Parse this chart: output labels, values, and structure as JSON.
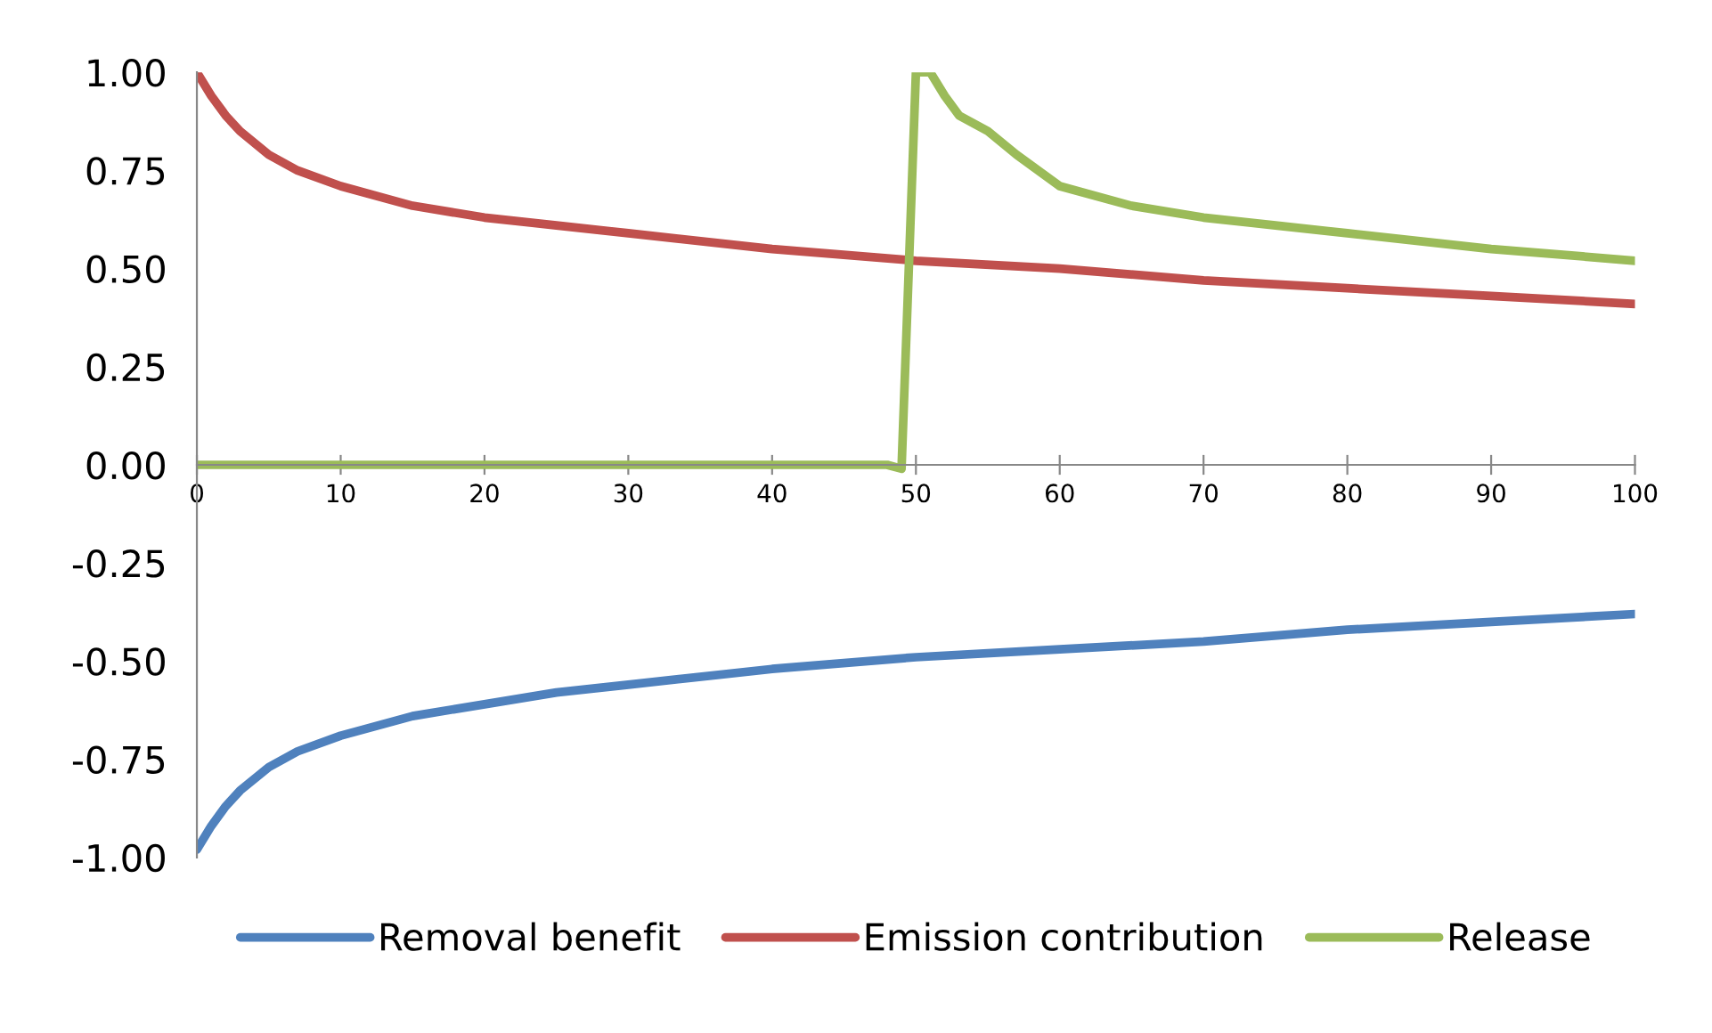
{
  "chart_data": {
    "type": "line",
    "legend": "bottom",
    "grid": false,
    "xlim": [
      0,
      100
    ],
    "xticks": [
      0,
      10,
      20,
      30,
      40,
      50,
      60,
      70,
      80,
      90,
      100
    ],
    "ylim": [
      -1.0,
      1.0
    ],
    "yticks": [
      {
        "value": 1,
        "label": "1.00"
      },
      {
        "value": 0.75,
        "label": "0.75"
      },
      {
        "value": 0.5,
        "label": "0.50"
      },
      {
        "value": 0.25,
        "label": "0.25"
      },
      {
        "value": 0,
        "label": "0.00"
      },
      {
        "value": -0.25,
        "label": "-0.25"
      },
      {
        "value": -0.5,
        "label": "-0.50"
      },
      {
        "value": -0.75,
        "label": "-0.75"
      },
      {
        "value": -1,
        "label": "-1.00"
      }
    ],
    "series": [
      {
        "name": "Removal benefit",
        "color": "#4f81bd",
        "x": [
          0,
          1,
          2,
          3,
          5,
          7,
          10,
          15,
          20,
          25,
          30,
          40,
          50,
          60,
          70,
          80,
          90,
          100
        ],
        "values": [
          -0.98,
          -0.92,
          -0.87,
          -0.83,
          -0.77,
          -0.73,
          -0.69,
          -0.64,
          -0.61,
          -0.58,
          -0.56,
          -0.52,
          -0.49,
          -0.47,
          -0.45,
          -0.42,
          -0.4,
          -0.38
        ]
      },
      {
        "name": "Emission contribution",
        "color": "#c0504d",
        "x": [
          0,
          1,
          2,
          3,
          5,
          7,
          10,
          15,
          20,
          25,
          30,
          40,
          50,
          60,
          70,
          80,
          90,
          100
        ],
        "values": [
          1.0,
          0.94,
          0.89,
          0.85,
          0.79,
          0.75,
          0.71,
          0.66,
          0.63,
          0.61,
          0.59,
          0.55,
          0.52,
          0.5,
          0.47,
          0.45,
          0.43,
          0.41
        ]
      },
      {
        "name": "Release",
        "color": "#9bbb59",
        "x": [
          0,
          10,
          20,
          30,
          40,
          48,
          49,
          50,
          51,
          52,
          53,
          55,
          57,
          60,
          65,
          70,
          75,
          80,
          90,
          100
        ],
        "values": [
          0.0,
          0.0,
          0.0,
          0.0,
          0.0,
          0.0,
          -0.01,
          1.0,
          1.0,
          0.94,
          0.89,
          0.85,
          0.79,
          0.71,
          0.66,
          0.63,
          0.61,
          0.59,
          0.55,
          0.52
        ]
      }
    ]
  }
}
